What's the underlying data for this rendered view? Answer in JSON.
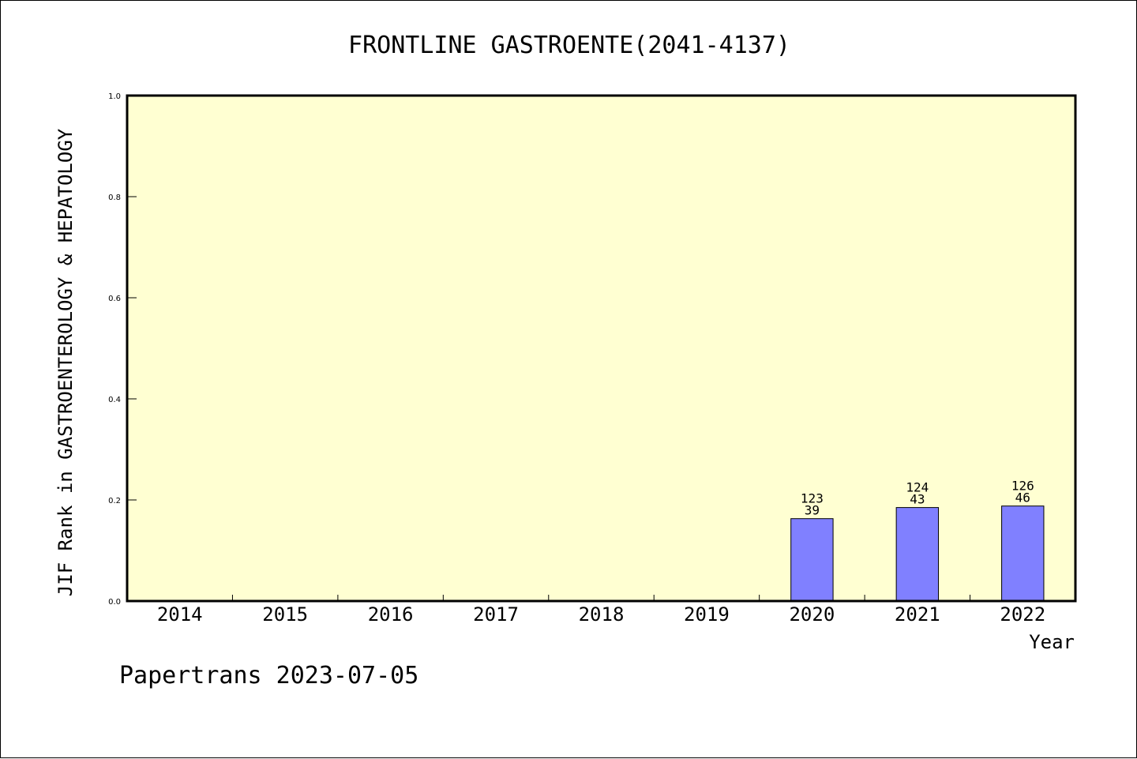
{
  "chart_data": {
    "type": "bar",
    "title": "FRONTLINE GASTROENTE(2041-4137)",
    "xlabel": "Year",
    "ylabel": "JIF Rank in GASTROENTEROLOGY & HEPATOLOGY",
    "ylim": [
      0,
      1
    ],
    "yticks": [
      "0.0",
      "0.2",
      "0.4",
      "0.6",
      "0.8",
      "1.0"
    ],
    "categories": [
      "2014",
      "2015",
      "2016",
      "2017",
      "2018",
      "2019",
      "2020",
      "2021",
      "2022"
    ],
    "values": [
      null,
      null,
      null,
      null,
      null,
      null,
      0.163,
      0.185,
      0.188
    ],
    "labels": [
      null,
      null,
      null,
      null,
      null,
      null,
      [
        "123",
        "39"
      ],
      [
        "124",
        "43"
      ],
      [
        "126",
        "46"
      ]
    ],
    "grid": false,
    "colors": {
      "plot_bg": "#ffffd2",
      "bar": "#8080ff"
    }
  },
  "footer": "Papertrans 2023-07-05"
}
